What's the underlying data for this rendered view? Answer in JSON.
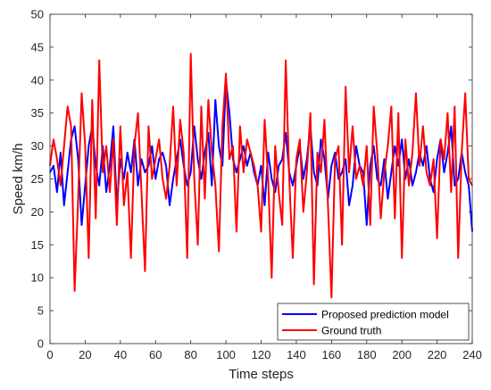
{
  "chart_data": {
    "type": "line",
    "title": "",
    "xlabel": "Time steps",
    "ylabel": "Speed km/h",
    "xlim": [
      0,
      240
    ],
    "ylim": [
      0,
      50
    ],
    "xticks": [
      0,
      20,
      40,
      60,
      80,
      100,
      120,
      140,
      160,
      180,
      200,
      220,
      240
    ],
    "yticks": [
      0,
      5,
      10,
      15,
      20,
      25,
      30,
      35,
      40,
      45,
      50
    ],
    "grid": false,
    "legend_position": "bottom-right",
    "x": [
      0,
      2,
      4,
      6,
      8,
      10,
      12,
      14,
      16,
      18,
      20,
      22,
      24,
      26,
      28,
      30,
      32,
      34,
      36,
      38,
      40,
      42,
      44,
      46,
      48,
      50,
      52,
      54,
      56,
      58,
      60,
      62,
      64,
      66,
      68,
      70,
      72,
      74,
      76,
      78,
      80,
      82,
      84,
      86,
      88,
      90,
      92,
      94,
      96,
      98,
      100,
      102,
      104,
      106,
      108,
      110,
      112,
      114,
      116,
      118,
      120,
      122,
      124,
      126,
      128,
      130,
      132,
      134,
      136,
      138,
      140,
      142,
      144,
      146,
      148,
      150,
      152,
      154,
      156,
      158,
      160,
      162,
      164,
      166,
      168,
      170,
      172,
      174,
      176,
      178,
      180,
      182,
      184,
      186,
      188,
      190,
      192,
      194,
      196,
      198,
      200,
      202,
      204,
      206,
      208,
      210,
      212,
      214,
      216,
      218,
      220,
      222,
      224,
      226,
      228,
      230,
      232,
      234,
      236,
      238,
      240
    ],
    "series": [
      {
        "name": "Proposed prediction model",
        "color": "#0000ff",
        "values": [
          26,
          27,
          23,
          29,
          21,
          26,
          31,
          33,
          28,
          18,
          24,
          30,
          33,
          27,
          24,
          30,
          23,
          27,
          33,
          21,
          28,
          25,
          29,
          26,
          31,
          24,
          28,
          26,
          27,
          30,
          25,
          28,
          29,
          27,
          21,
          25,
          28,
          31,
          27,
          24,
          26,
          33,
          28,
          25,
          29,
          32,
          24,
          37,
          30,
          27,
          40,
          35,
          28,
          26,
          28,
          30,
          27,
          29,
          26,
          24,
          27,
          21,
          29,
          25,
          23,
          27,
          28,
          32,
          26,
          24,
          27,
          30,
          25,
          28,
          33,
          26,
          24,
          31,
          28,
          22,
          27,
          29,
          25,
          26,
          28,
          21,
          24,
          30,
          27,
          26,
          18,
          27,
          30,
          25,
          24,
          28,
          22,
          26,
          30,
          27,
          31,
          25,
          28,
          24,
          26,
          29,
          27,
          30,
          25,
          23,
          28,
          31,
          26,
          29,
          33,
          24,
          25,
          29,
          26,
          24,
          17
        ]
      },
      {
        "name": "Ground truth",
        "color": "#ff0000",
        "values": [
          27,
          31,
          28,
          24,
          30,
          36,
          33,
          8,
          22,
          38,
          30,
          13,
          37,
          19,
          43,
          26,
          30,
          23,
          31,
          18,
          33,
          21,
          26,
          13,
          30,
          35,
          23,
          11,
          33,
          25,
          28,
          31,
          25,
          22,
          27,
          36,
          24,
          34,
          29,
          13,
          44,
          25,
          15,
          36,
          22,
          37,
          29,
          24,
          14,
          33,
          41,
          28,
          30,
          17,
          33,
          26,
          31,
          29,
          27,
          24,
          17,
          34,
          25,
          10,
          30,
          23,
          18,
          43,
          25,
          13,
          28,
          31,
          20,
          26,
          35,
          9,
          29,
          26,
          34,
          21,
          7,
          28,
          30,
          15,
          39,
          26,
          33,
          25,
          27,
          24,
          30,
          18,
          36,
          29,
          19,
          26,
          30,
          36,
          19,
          35,
          13,
          31,
          24,
          29,
          38,
          27,
          33,
          26,
          24,
          28,
          16,
          31,
          28,
          35,
          23,
          36,
          13,
          29,
          38,
          25,
          24
        ]
      }
    ]
  }
}
